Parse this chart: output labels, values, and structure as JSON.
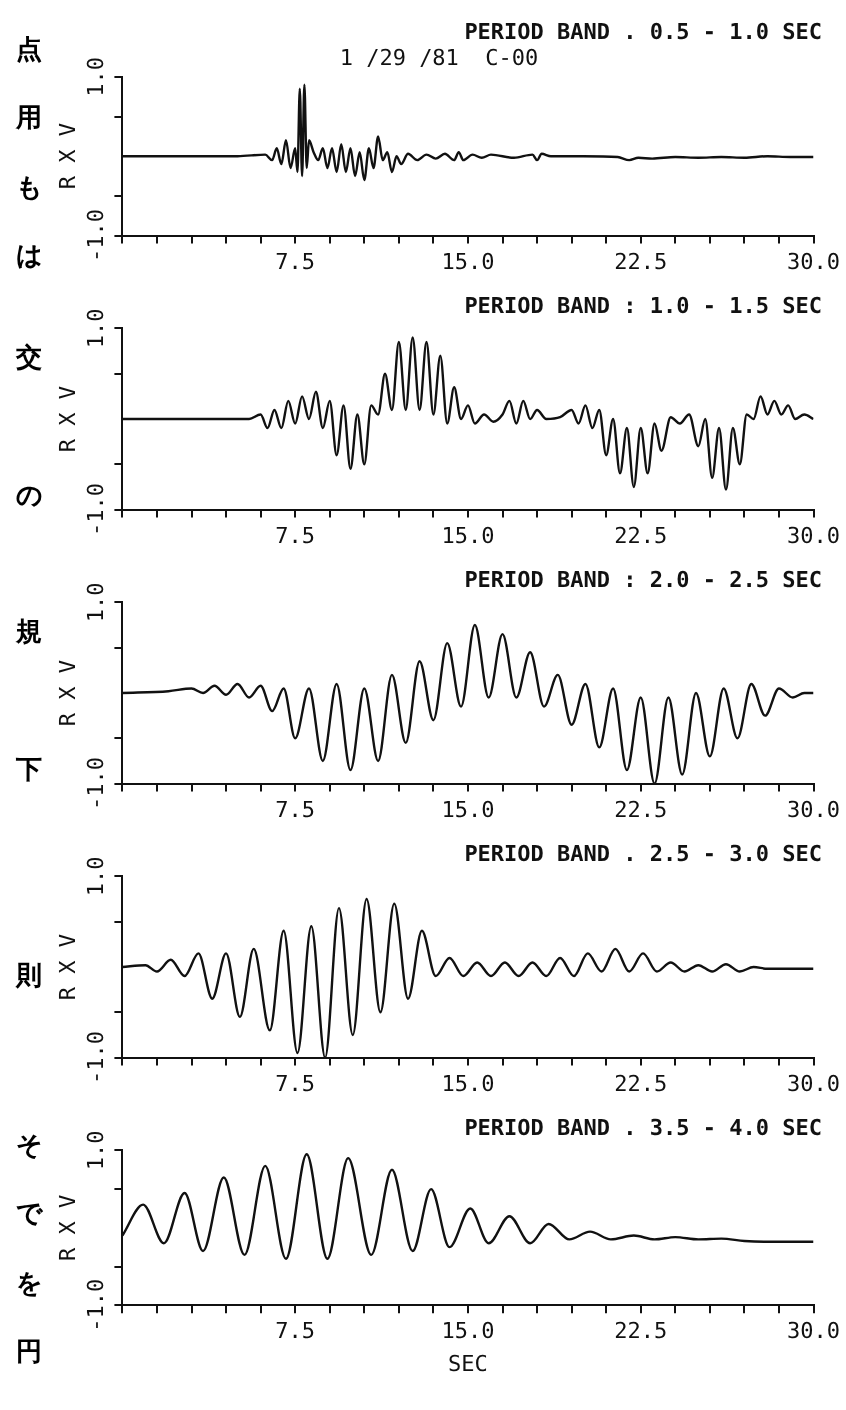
{
  "chart_data": [
    {
      "type": "line",
      "title": "PERIOD BAND . 0.5 - 1.0 SEC",
      "subtitle": "1 /29 /81  C-00",
      "ylabel": "R X V",
      "color": "#111111",
      "marker": "none",
      "line_style": "solid",
      "legend": false,
      "annotations": [
        "点",
        "用",
        "も",
        "は"
      ],
      "xlim": [
        0,
        30
      ],
      "xticks": [
        {
          "value": 0,
          "label": null
        },
        {
          "value": 1.5,
          "label": null
        },
        {
          "value": 3,
          "label": null
        },
        {
          "value": 4.5,
          "label": null
        },
        {
          "value": 6,
          "label": null
        },
        {
          "value": 7.5,
          "label": "7.5"
        },
        {
          "value": 9,
          "label": null
        },
        {
          "value": 10.5,
          "label": null
        },
        {
          "value": 12,
          "label": null
        },
        {
          "value": 13.5,
          "label": null
        },
        {
          "value": 15,
          "label": "15.0"
        },
        {
          "value": 16.5,
          "label": null
        },
        {
          "value": 18,
          "label": null
        },
        {
          "value": 19.5,
          "label": null
        },
        {
          "value": 21,
          "label": null
        },
        {
          "value": 22.5,
          "label": "22.5"
        },
        {
          "value": 24,
          "label": null
        },
        {
          "value": 25.5,
          "label": null
        },
        {
          "value": 27,
          "label": null
        },
        {
          "value": 28.5,
          "label": null
        },
        {
          "value": 30,
          "label": "30.0"
        }
      ],
      "ylim": [
        -1,
        1
      ],
      "yticks": [
        {
          "value": -1,
          "label": "-1.0"
        },
        {
          "value": -0.5,
          "label": null
        },
        {
          "value": 0.5,
          "label": null
        },
        {
          "value": 1,
          "label": "1.0"
        }
      ],
      "x": [
        0,
        5,
        6.2,
        6.5,
        6.7,
        6.9,
        7.1,
        7.3,
        7.5,
        7.6,
        7.7,
        7.8,
        7.9,
        8.0,
        8.1,
        8.3,
        8.5,
        8.7,
        8.9,
        9.1,
        9.3,
        9.5,
        9.7,
        9.9,
        10.1,
        10.3,
        10.5,
        10.7,
        10.9,
        11.1,
        11.3,
        11.5,
        11.7,
        11.9,
        12.1,
        12.4,
        12.8,
        13.2,
        13.6,
        14.0,
        14.4,
        14.6,
        14.8,
        15.2,
        15.6,
        16.0,
        17.0,
        17.8,
        18.0,
        18.2,
        18.6,
        20,
        21.5,
        22.0,
        22.4,
        23,
        24,
        25,
        26,
        27,
        28,
        29,
        30
      ],
      "values": [
        0,
        0,
        0.02,
        -0.05,
        0.1,
        -0.1,
        0.2,
        -0.15,
        0.1,
        -0.2,
        0.85,
        -0.25,
        0.9,
        -0.15,
        0.2,
        0.05,
        -0.05,
        0.1,
        -0.15,
        0.1,
        -0.2,
        0.15,
        -0.2,
        0.1,
        -0.25,
        0.05,
        -0.3,
        0.1,
        -0.15,
        0.25,
        -0.05,
        0.05,
        -0.2,
        0,
        -0.1,
        0.03,
        -0.05,
        0.02,
        -0.03,
        0.03,
        -0.05,
        0.05,
        -0.05,
        0.02,
        -0.02,
        0.02,
        -0.02,
        0.02,
        -0.05,
        0.03,
        0,
        0,
        -0.01,
        -0.05,
        -0.02,
        -0.03,
        -0.01,
        -0.02,
        -0.01,
        -0.02,
        0,
        -0.01,
        -0.01
      ]
    },
    {
      "type": "line",
      "title": "PERIOD BAND : 1.0 - 1.5 SEC",
      "ylabel": "R X V",
      "color": "#111111",
      "marker": "none",
      "line_style": "solid",
      "legend": false,
      "annotations": [
        "交",
        "の"
      ],
      "xlim": [
        0,
        30
      ],
      "xticks": [
        {
          "value": 0,
          "label": null
        },
        {
          "value": 1.5,
          "label": null
        },
        {
          "value": 3,
          "label": null
        },
        {
          "value": 4.5,
          "label": null
        },
        {
          "value": 6,
          "label": null
        },
        {
          "value": 7.5,
          "label": "7.5"
        },
        {
          "value": 9,
          "label": null
        },
        {
          "value": 10.5,
          "label": null
        },
        {
          "value": 12,
          "label": null
        },
        {
          "value": 13.5,
          "label": null
        },
        {
          "value": 15,
          "label": "15.0"
        },
        {
          "value": 16.5,
          "label": null
        },
        {
          "value": 18,
          "label": null
        },
        {
          "value": 19.5,
          "label": null
        },
        {
          "value": 21,
          "label": null
        },
        {
          "value": 22.5,
          "label": "22.5"
        },
        {
          "value": 24,
          "label": null
        },
        {
          "value": 25.5,
          "label": null
        },
        {
          "value": 27,
          "label": null
        },
        {
          "value": 28.5,
          "label": null
        },
        {
          "value": 30,
          "label": "30.0"
        }
      ],
      "ylim": [
        -1,
        1
      ],
      "yticks": [
        {
          "value": -1,
          "label": "-1.0"
        },
        {
          "value": -0.5,
          "label": null
        },
        {
          "value": 0.5,
          "label": null
        },
        {
          "value": 1,
          "label": "1.0"
        }
      ],
      "x": [
        0,
        5.5,
        6,
        6.3,
        6.6,
        6.9,
        7.2,
        7.5,
        7.8,
        8.1,
        8.4,
        8.7,
        9.0,
        9.3,
        9.6,
        9.9,
        10.2,
        10.5,
        10.8,
        11.1,
        11.4,
        11.7,
        12.0,
        12.3,
        12.6,
        12.9,
        13.2,
        13.5,
        13.8,
        14.1,
        14.4,
        14.7,
        15.0,
        15.3,
        15.7,
        16.1,
        16.5,
        16.8,
        17.1,
        17.4,
        17.7,
        18.0,
        18.4,
        19.0,
        19.5,
        19.8,
        20.1,
        20.4,
        20.7,
        21.0,
        21.3,
        21.6,
        21.9,
        22.2,
        22.5,
        22.8,
        23.1,
        23.4,
        23.8,
        24.2,
        24.6,
        25.0,
        25.3,
        25.6,
        25.9,
        26.2,
        26.5,
        26.8,
        27.1,
        27.4,
        27.7,
        28.0,
        28.3,
        28.6,
        28.9,
        29.2,
        29.6,
        30
      ],
      "values": [
        0,
        0,
        0.05,
        -0.1,
        0.1,
        -0.1,
        0.2,
        -0.05,
        0.25,
        0,
        0.3,
        -0.1,
        0.2,
        -0.4,
        0.15,
        -0.55,
        0.05,
        -0.5,
        0.15,
        0.05,
        0.5,
        0.1,
        0.85,
        0.1,
        0.9,
        0.1,
        0.85,
        0.05,
        0.7,
        -0.05,
        0.35,
        0,
        0.15,
        -0.05,
        0.05,
        -0.03,
        0.05,
        0.2,
        -0.05,
        0.2,
        0,
        0.1,
        0,
        0.02,
        0.1,
        -0.05,
        0.15,
        -0.1,
        0.1,
        -0.4,
        0,
        -0.6,
        -0.1,
        -0.75,
        -0.1,
        -0.6,
        -0.05,
        -0.35,
        0.02,
        -0.05,
        0.05,
        -0.3,
        0,
        -0.65,
        -0.1,
        -0.78,
        -0.1,
        -0.5,
        0.05,
        0,
        0.25,
        0.05,
        0.2,
        0.05,
        0.15,
        0,
        0.05,
        0
      ]
    },
    {
      "type": "line",
      "title": "PERIOD BAND : 2.0 - 2.5 SEC",
      "ylabel": "R X V",
      "color": "#111111",
      "marker": "none",
      "line_style": "solid",
      "legend": false,
      "annotations": [
        "規",
        "下"
      ],
      "xlim": [
        0,
        30
      ],
      "xticks": [
        {
          "value": 0,
          "label": null
        },
        {
          "value": 1.5,
          "label": null
        },
        {
          "value": 3,
          "label": null
        },
        {
          "value": 4.5,
          "label": null
        },
        {
          "value": 6,
          "label": null
        },
        {
          "value": 7.5,
          "label": "7.5"
        },
        {
          "value": 9,
          "label": null
        },
        {
          "value": 10.5,
          "label": null
        },
        {
          "value": 12,
          "label": null
        },
        {
          "value": 13.5,
          "label": null
        },
        {
          "value": 15,
          "label": "15.0"
        },
        {
          "value": 16.5,
          "label": null
        },
        {
          "value": 18,
          "label": null
        },
        {
          "value": 19.5,
          "label": null
        },
        {
          "value": 21,
          "label": null
        },
        {
          "value": 22.5,
          "label": "22.5"
        },
        {
          "value": 24,
          "label": null
        },
        {
          "value": 25.5,
          "label": null
        },
        {
          "value": 27,
          "label": null
        },
        {
          "value": 28.5,
          "label": null
        },
        {
          "value": 30,
          "label": "30.0"
        }
      ],
      "ylim": [
        -1,
        1
      ],
      "yticks": [
        {
          "value": -1,
          "label": "-1.0"
        },
        {
          "value": -0.5,
          "label": null
        },
        {
          "value": 0.5,
          "label": null
        },
        {
          "value": 1,
          "label": "1.0"
        }
      ],
      "x": [
        0,
        2,
        3,
        3.5,
        4,
        4.5,
        5,
        5.5,
        6,
        6.5,
        7,
        7.5,
        8.1,
        8.7,
        9.3,
        9.9,
        10.5,
        11.1,
        11.7,
        12.3,
        12.9,
        13.5,
        14.1,
        14.7,
        15.3,
        15.9,
        16.5,
        17.1,
        17.7,
        18.3,
        18.9,
        19.5,
        20.1,
        20.7,
        21.3,
        21.9,
        22.5,
        23.1,
        23.7,
        24.3,
        24.9,
        25.5,
        26.1,
        26.7,
        27.3,
        27.9,
        28.5,
        29.1,
        29.6,
        30
      ],
      "values": [
        0,
        0.02,
        0.05,
        0,
        0.08,
        -0.02,
        0.1,
        -0.05,
        0.08,
        -0.2,
        0.05,
        -0.5,
        0.05,
        -0.75,
        0.1,
        -0.85,
        0.05,
        -0.75,
        0.2,
        -0.55,
        0.35,
        -0.3,
        0.55,
        -0.15,
        0.75,
        -0.05,
        0.65,
        -0.05,
        0.45,
        -0.15,
        0.2,
        -0.35,
        0.1,
        -0.6,
        0.05,
        -0.85,
        -0.05,
        -1.0,
        -0.05,
        -0.9,
        0,
        -0.7,
        0.05,
        -0.5,
        0.1,
        -0.25,
        0.05,
        -0.05,
        0,
        0
      ]
    },
    {
      "type": "line",
      "title": "PERIOD BAND . 2.5 - 3.0 SEC",
      "ylabel": "R X V",
      "color": "#111111",
      "marker": "none",
      "line_style": "solid",
      "legend": false,
      "annotations": [
        "則"
      ],
      "xlim": [
        0,
        30
      ],
      "xticks": [
        {
          "value": 0,
          "label": null
        },
        {
          "value": 1.5,
          "label": null
        },
        {
          "value": 3,
          "label": null
        },
        {
          "value": 4.5,
          "label": null
        },
        {
          "value": 6,
          "label": null
        },
        {
          "value": 7.5,
          "label": "7.5"
        },
        {
          "value": 9,
          "label": null
        },
        {
          "value": 10.5,
          "label": null
        },
        {
          "value": 12,
          "label": null
        },
        {
          "value": 13.5,
          "label": null
        },
        {
          "value": 15,
          "label": "15.0"
        },
        {
          "value": 16.5,
          "label": null
        },
        {
          "value": 18,
          "label": null
        },
        {
          "value": 19.5,
          "label": null
        },
        {
          "value": 21,
          "label": null
        },
        {
          "value": 22.5,
          "label": "22.5"
        },
        {
          "value": 24,
          "label": null
        },
        {
          "value": 25.5,
          "label": null
        },
        {
          "value": 27,
          "label": null
        },
        {
          "value": 28.5,
          "label": null
        },
        {
          "value": 30,
          "label": "30.0"
        }
      ],
      "ylim": [
        -1,
        1
      ],
      "yticks": [
        {
          "value": -1,
          "label": "-1.0"
        },
        {
          "value": -0.5,
          "label": null
        },
        {
          "value": 0.5,
          "label": null
        },
        {
          "value": 1,
          "label": "1.0"
        }
      ],
      "x": [
        0,
        1,
        1.5,
        2.1,
        2.7,
        3.3,
        3.9,
        4.5,
        5.1,
        5.7,
        6.4,
        7.0,
        7.6,
        8.2,
        8.8,
        9.4,
        10.0,
        10.6,
        11.2,
        11.8,
        12.4,
        13.0,
        13.6,
        14.2,
        14.8,
        15.4,
        16.0,
        16.6,
        17.2,
        17.8,
        18.4,
        19.0,
        19.6,
        20.2,
        20.8,
        21.4,
        22.0,
        22.6,
        23.2,
        23.8,
        24.4,
        25,
        25.6,
        26.2,
        26.8,
        27.4,
        28,
        30
      ],
      "values": [
        0,
        0.02,
        -0.05,
        0.08,
        -0.1,
        0.15,
        -0.35,
        0.15,
        -0.55,
        0.2,
        -0.7,
        0.4,
        -0.95,
        0.45,
        -1.0,
        0.65,
        -0.75,
        0.75,
        -0.5,
        0.7,
        -0.35,
        0.4,
        -0.1,
        0.1,
        -0.1,
        0.05,
        -0.1,
        0.05,
        -0.1,
        0.05,
        -0.1,
        0.1,
        -0.1,
        0.15,
        -0.05,
        0.2,
        -0.05,
        0.15,
        -0.05,
        0.05,
        -0.05,
        0.02,
        -0.05,
        0.03,
        -0.05,
        0,
        -0.02,
        -0.02
      ]
    },
    {
      "type": "line",
      "title": "PERIOD BAND . 3.5 - 4.0 SEC",
      "xlabel": "SEC",
      "ylabel": "R X V",
      "color": "#111111",
      "marker": "none",
      "line_style": "solid",
      "legend": false,
      "annotations": [
        "そ",
        "で",
        "を",
        "円"
      ],
      "xlim": [
        0,
        30
      ],
      "xticks": [
        {
          "value": 0,
          "label": null
        },
        {
          "value": 1.5,
          "label": null
        },
        {
          "value": 3,
          "label": null
        },
        {
          "value": 4.5,
          "label": null
        },
        {
          "value": 6,
          "label": null
        },
        {
          "value": 7.5,
          "label": "7.5"
        },
        {
          "value": 9,
          "label": null
        },
        {
          "value": 10.5,
          "label": null
        },
        {
          "value": 12,
          "label": null
        },
        {
          "value": 13.5,
          "label": null
        },
        {
          "value": 15,
          "label": "15.0"
        },
        {
          "value": 16.5,
          "label": null
        },
        {
          "value": 18,
          "label": null
        },
        {
          "value": 19.5,
          "label": null
        },
        {
          "value": 21,
          "label": null
        },
        {
          "value": 22.5,
          "label": "22.5"
        },
        {
          "value": 24,
          "label": null
        },
        {
          "value": 25.5,
          "label": null
        },
        {
          "value": 27,
          "label": null
        },
        {
          "value": 28.5,
          "label": null
        },
        {
          "value": 30,
          "label": "30.0"
        }
      ],
      "ylim": [
        -1,
        1
      ],
      "yticks": [
        {
          "value": -1,
          "label": "-1.0"
        },
        {
          "value": -0.5,
          "label": null
        },
        {
          "value": 0.5,
          "label": null
        },
        {
          "value": 1,
          "label": "1.0"
        }
      ],
      "x": [
        0,
        0.9,
        1.8,
        2.7,
        3.5,
        4.4,
        5.3,
        6.2,
        7.1,
        8.0,
        8.9,
        9.8,
        10.8,
        11.7,
        12.6,
        13.4,
        14.2,
        15.1,
        15.9,
        16.8,
        17.7,
        18.5,
        19.4,
        20.3,
        21.2,
        22.2,
        23.1,
        24,
        25,
        26,
        27,
        28,
        30
      ],
      "values": [
        -0.1,
        0.3,
        -0.2,
        0.45,
        -0.3,
        0.65,
        -0.35,
        0.8,
        -0.4,
        0.95,
        -0.4,
        0.9,
        -0.35,
        0.75,
        -0.3,
        0.5,
        -0.25,
        0.25,
        -0.2,
        0.15,
        -0.2,
        0.05,
        -0.15,
        -0.05,
        -0.15,
        -0.1,
        -0.15,
        -0.12,
        -0.15,
        -0.14,
        -0.17,
        -0.18,
        -0.18
      ]
    }
  ]
}
